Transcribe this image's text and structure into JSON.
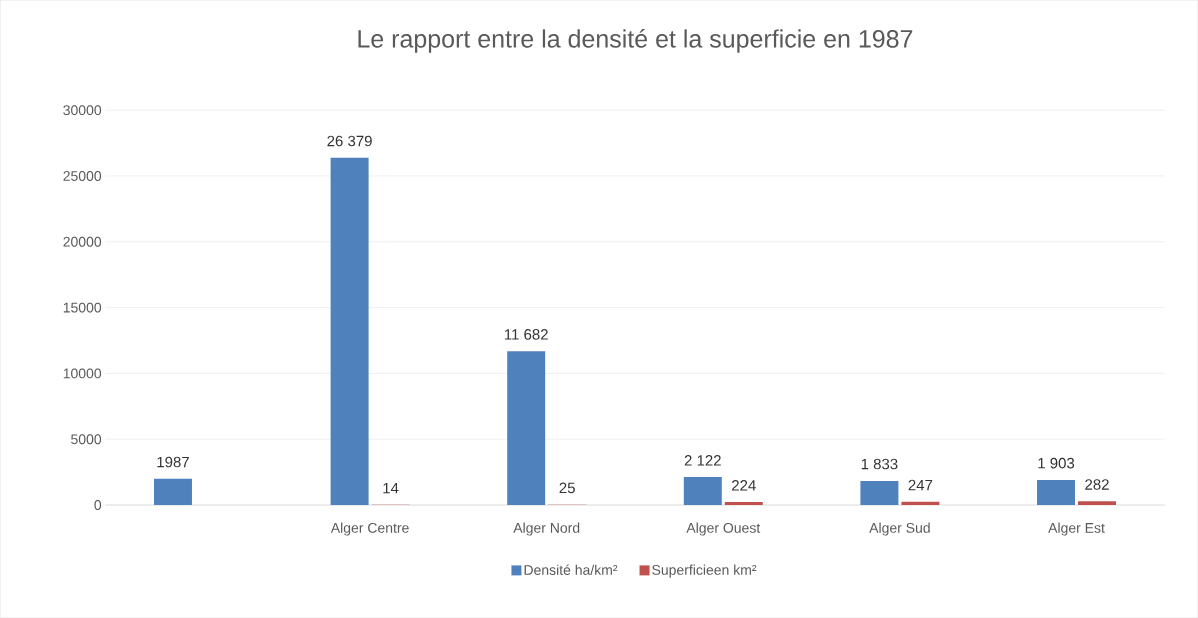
{
  "chart_data": {
    "type": "bar",
    "title": "Le rapport entre la densité et la superficie en 1987",
    "categories": [
      null,
      "Alger Centre",
      "Alger Nord",
      "Alger Ouest",
      "Alger Sud",
      "Alger Est"
    ],
    "series": [
      {
        "name": "Densité ha/km²",
        "color": "#4f81bd",
        "values": [
          1987,
          26379,
          11682,
          2122,
          1833,
          1903
        ],
        "value_labels": [
          "1987",
          "26 379",
          "11 682",
          "2 122",
          "1 833",
          "1 903"
        ]
      },
      {
        "name": "Superficieen km²",
        "color": "#c0504d",
        "values": [
          null,
          14,
          25,
          224,
          247,
          282
        ],
        "value_labels": [
          null,
          "14",
          "25",
          "224",
          "247",
          "282"
        ]
      }
    ],
    "ylim": [
      0,
      30000
    ],
    "yticks": [
      0,
      5000,
      10000,
      15000,
      20000,
      25000,
      30000
    ],
    "grid": "y",
    "legend": "bottom"
  }
}
